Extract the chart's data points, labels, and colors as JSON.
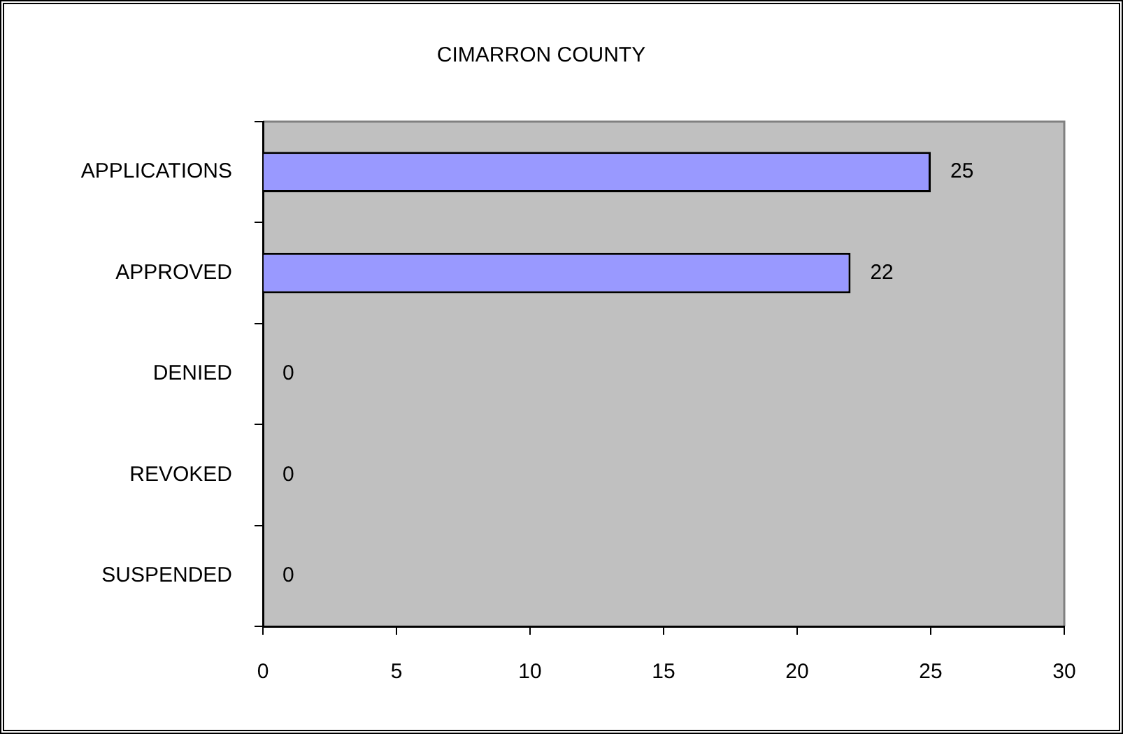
{
  "chart_data": {
    "type": "bar",
    "orientation": "horizontal",
    "title": "CIMARRON COUNTY",
    "categories": [
      "APPLICATIONS",
      "APPROVED",
      "DENIED",
      "REVOKED",
      "SUSPENDED"
    ],
    "values": [
      25,
      22,
      0,
      0,
      0
    ],
    "color": "#9999ff",
    "xlim": [
      0,
      30
    ],
    "xticks": [
      0,
      5,
      10,
      15,
      20,
      25,
      30
    ],
    "data_labels": true
  }
}
